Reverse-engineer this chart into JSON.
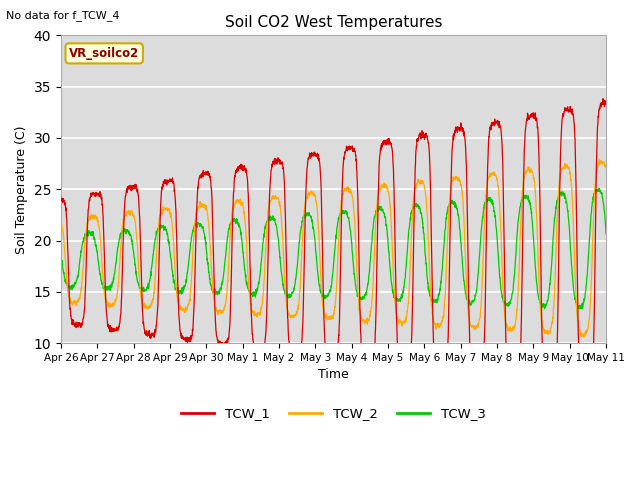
{
  "title": "Soil CO2 West Temperatures",
  "xlabel": "Time",
  "ylabel": "Soil Temperature (C)",
  "note": "No data for f_TCW_4",
  "annotation": "VR_soilco2",
  "ylim": [
    10,
    40
  ],
  "yticks": [
    10,
    15,
    20,
    25,
    30,
    35,
    40
  ],
  "x_labels": [
    "Apr 26",
    "Apr 27",
    "Apr 28",
    "Apr 29",
    "Apr 30",
    "May 1",
    "May 2",
    "May 3",
    "May 4",
    "May 5",
    "May 6",
    "May 7",
    "May 8",
    "May 9",
    "May 10",
    "May 11"
  ],
  "colors": {
    "TCW_1": "#dd0000",
    "TCW_2": "#ffaa00",
    "TCW_3": "#00cc00"
  },
  "fig_bg": "#ffffff",
  "plot_bg": "#dcdcdc",
  "num_days": 15,
  "samples_per_day": 144
}
